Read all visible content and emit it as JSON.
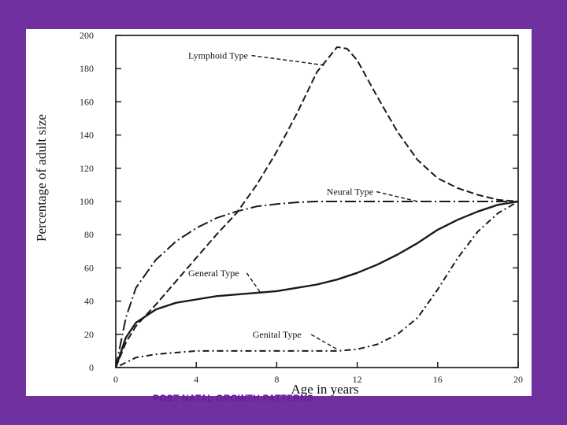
{
  "chart_data": {
    "type": "line",
    "title": "",
    "xlabel": "Age in years",
    "ylabel": "Percentage of adult size",
    "xlim": [
      0,
      20
    ],
    "ylim": [
      0,
      200
    ],
    "x_ticks": [
      0,
      4,
      8,
      12,
      16,
      20
    ],
    "y_ticks": [
      0,
      20,
      40,
      60,
      80,
      100,
      120,
      140,
      160,
      180,
      200
    ],
    "grid": false,
    "series": [
      {
        "name": "Lymphoid Type",
        "dash": "long-dash",
        "points": [
          [
            0,
            0
          ],
          [
            0.5,
            15
          ],
          [
            1,
            25
          ],
          [
            2,
            38
          ],
          [
            3,
            52
          ],
          [
            4,
            66
          ],
          [
            5,
            80
          ],
          [
            6,
            93
          ],
          [
            7,
            110
          ],
          [
            8,
            130
          ],
          [
            9,
            153
          ],
          [
            10,
            178
          ],
          [
            11,
            193
          ],
          [
            11.5,
            192
          ],
          [
            12,
            185
          ],
          [
            13,
            163
          ],
          [
            14,
            142
          ],
          [
            15,
            125
          ],
          [
            16,
            114
          ],
          [
            17,
            108
          ],
          [
            18,
            104
          ],
          [
            19,
            101
          ],
          [
            20,
            100
          ]
        ]
      },
      {
        "name": "Neural Type",
        "dash": "dash-dot",
        "points": [
          [
            0,
            0
          ],
          [
            0.5,
            30
          ],
          [
            1,
            48
          ],
          [
            2,
            65
          ],
          [
            3,
            76
          ],
          [
            4,
            84
          ],
          [
            5,
            90
          ],
          [
            6,
            94
          ],
          [
            7,
            97
          ],
          [
            8,
            98.5
          ],
          [
            9,
            99.5
          ],
          [
            10,
            100
          ],
          [
            12,
            100
          ],
          [
            14,
            100
          ],
          [
            16,
            100
          ],
          [
            18,
            100
          ],
          [
            20,
            100
          ]
        ]
      },
      {
        "name": "General Type",
        "dash": "solid",
        "points": [
          [
            0,
            0
          ],
          [
            0.5,
            18
          ],
          [
            1,
            27
          ],
          [
            2,
            35
          ],
          [
            3,
            39
          ],
          [
            4,
            41
          ],
          [
            5,
            43
          ],
          [
            6,
            44
          ],
          [
            7,
            45
          ],
          [
            8,
            46
          ],
          [
            9,
            48
          ],
          [
            10,
            50
          ],
          [
            11,
            53
          ],
          [
            12,
            57
          ],
          [
            13,
            62
          ],
          [
            14,
            68
          ],
          [
            15,
            75
          ],
          [
            16,
            83
          ],
          [
            17,
            89
          ],
          [
            18,
            94
          ],
          [
            19,
            98
          ],
          [
            20,
            100
          ]
        ]
      },
      {
        "name": "Genital Type",
        "dash": "dot-dash",
        "points": [
          [
            0,
            0
          ],
          [
            1,
            6
          ],
          [
            2,
            8
          ],
          [
            3,
            9
          ],
          [
            4,
            10
          ],
          [
            6,
            10
          ],
          [
            8,
            10
          ],
          [
            10,
            10
          ],
          [
            11,
            10
          ],
          [
            12,
            11
          ],
          [
            13,
            14
          ],
          [
            14,
            20
          ],
          [
            15,
            30
          ],
          [
            16,
            47
          ],
          [
            17,
            66
          ],
          [
            18,
            82
          ],
          [
            19,
            93
          ],
          [
            20,
            100
          ]
        ]
      }
    ]
  },
  "footer": {
    "caption": "POST NATAL GROWTH PATTERNS"
  },
  "colors": {
    "background": "#7030a0",
    "panel": "#ffffff",
    "ink": "#1a1a1a",
    "caption": "#6a1b9a"
  }
}
